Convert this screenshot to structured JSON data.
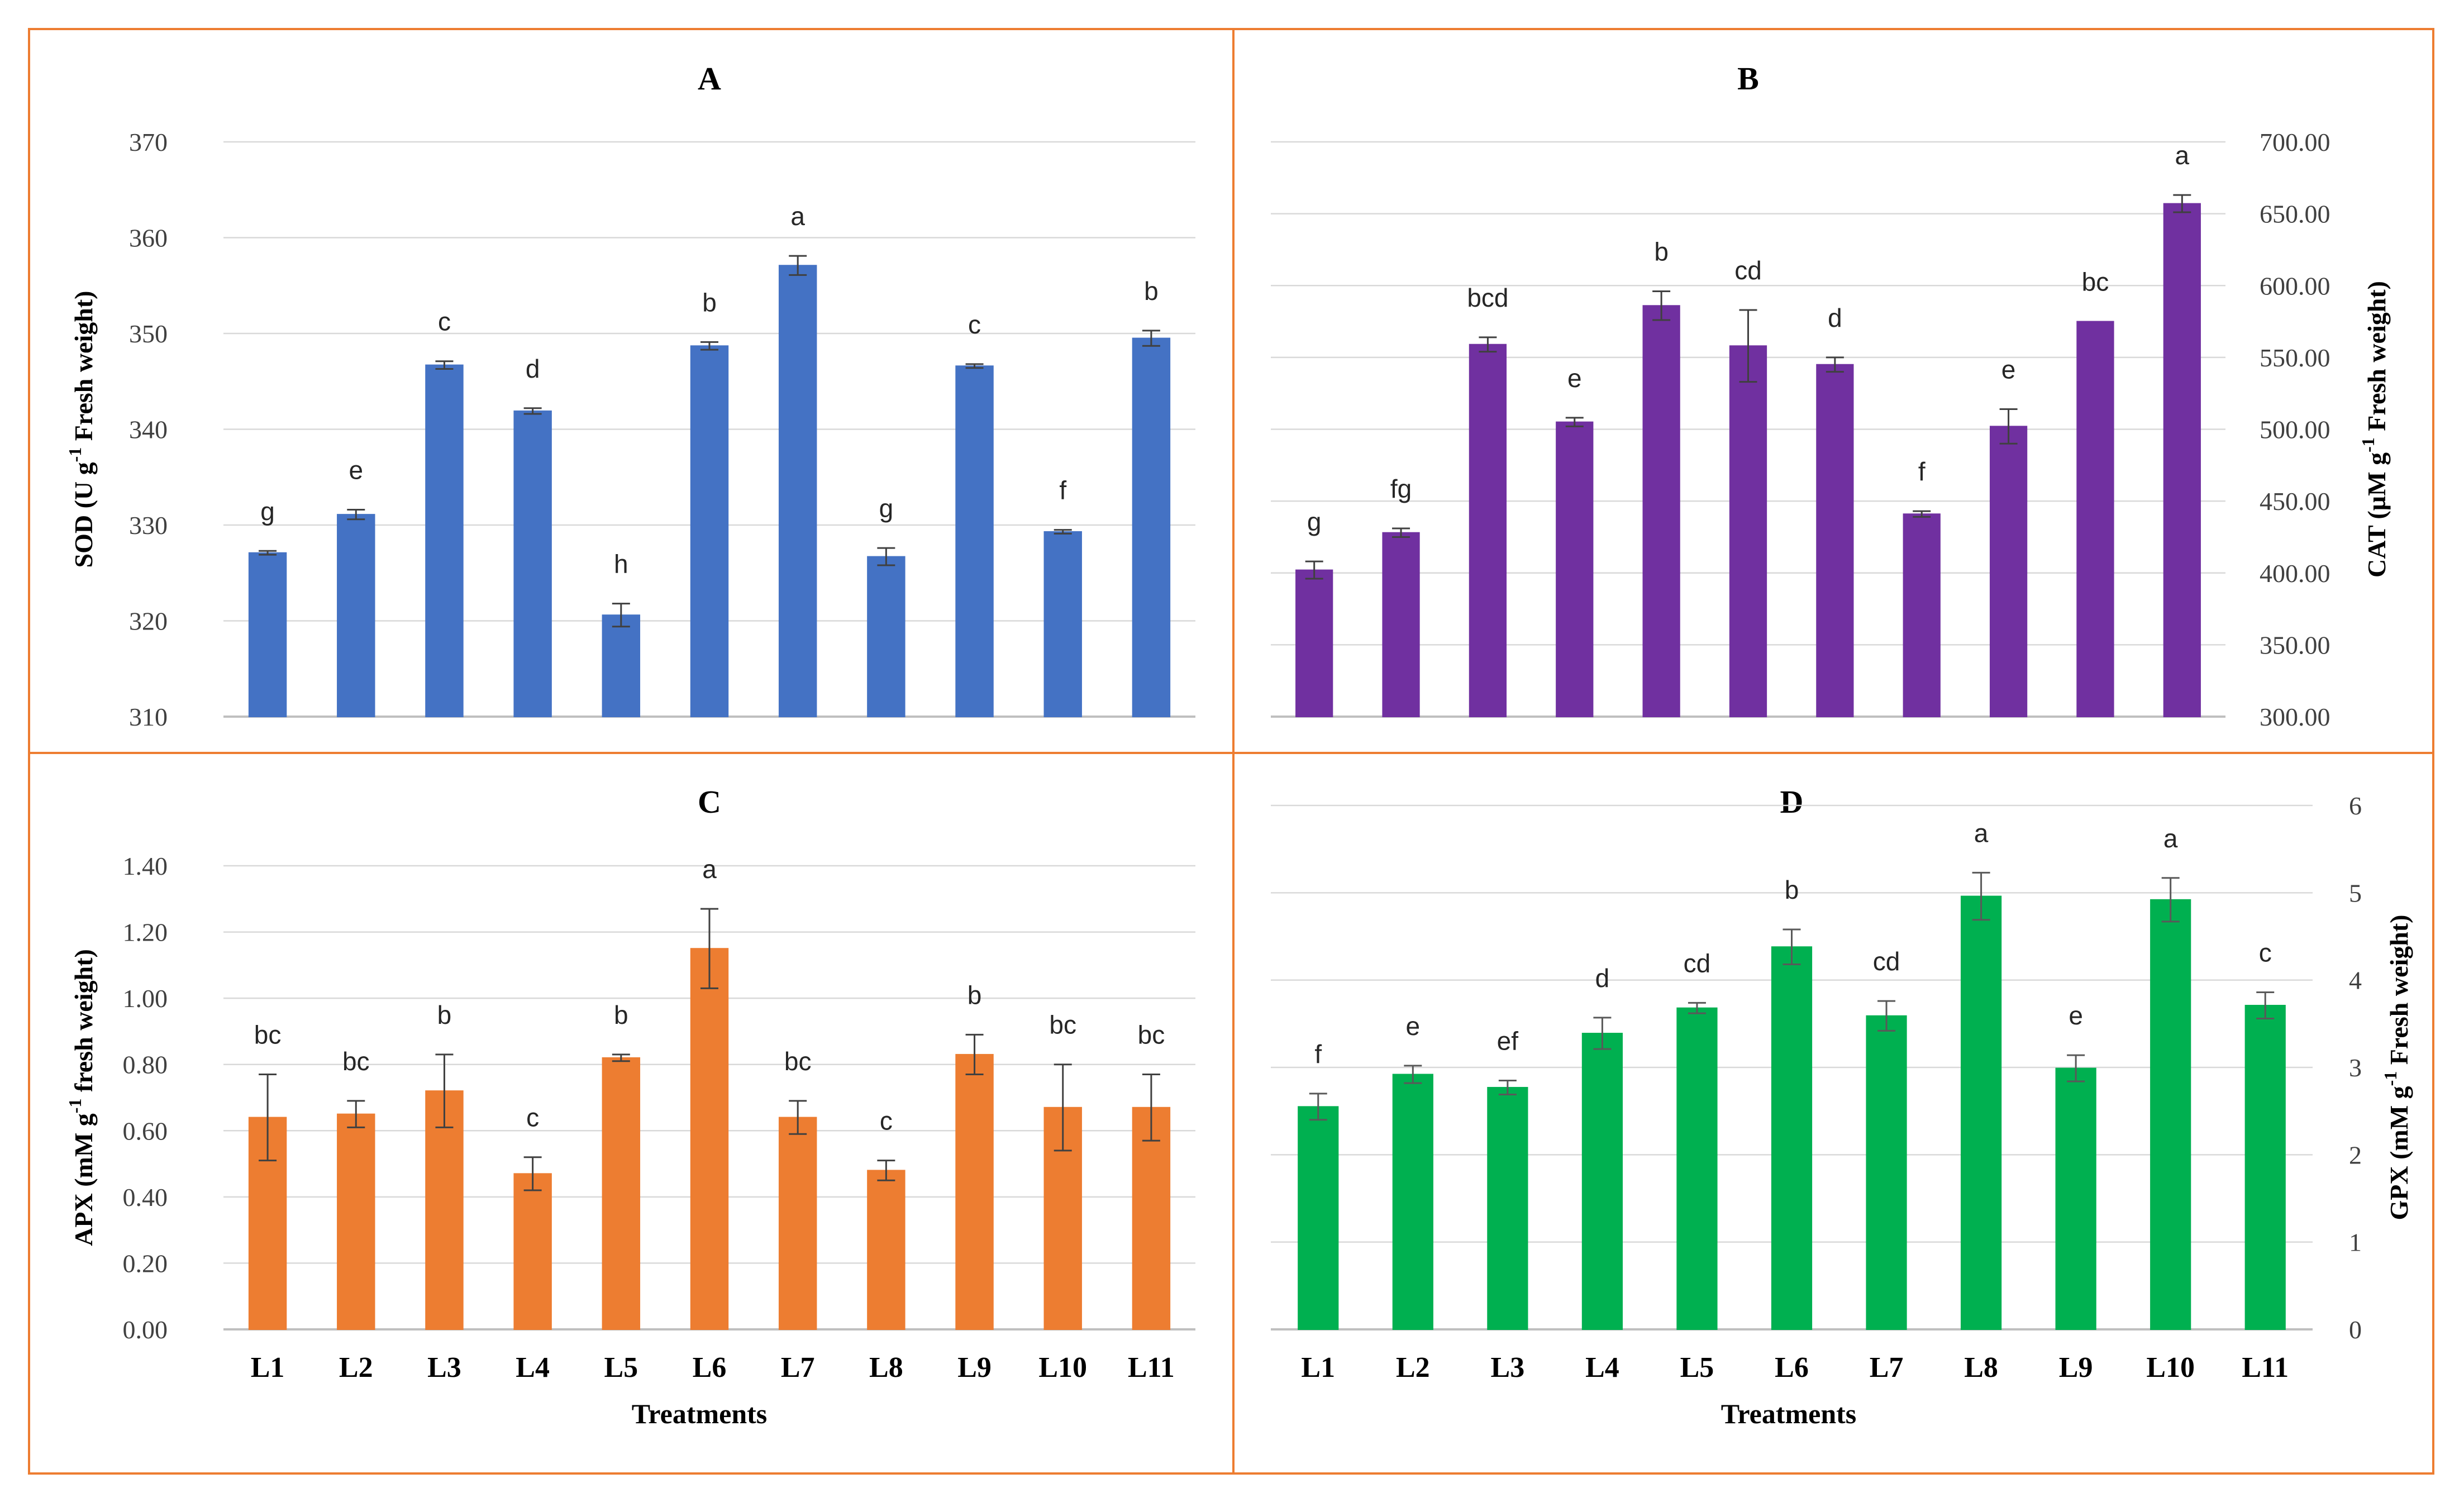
{
  "colors": {
    "panel_border": "#ED7D31",
    "grid": "#d9d9d9",
    "axis": "#bfbfbf",
    "text": "#404040",
    "error_bar": "#404040",
    "error_bar_gpx": "#595959"
  },
  "chart_data": [
    {
      "id": "A",
      "type": "bar",
      "title": "A",
      "ylabel_pre": "SOD (U g",
      "ylabel_sup": "-1",
      "ylabel_post": " Fresh weight)",
      "axis_side": "left",
      "bar_color": "#4472C4",
      "ylim": [
        310,
        370
      ],
      "ticks": [
        310,
        320,
        330,
        340,
        350,
        360,
        370
      ],
      "tick_labels": [
        "310",
        "320",
        "330",
        "340",
        "350",
        "360",
        "370"
      ],
      "categories": [
        "L1",
        "L2",
        "L3",
        "L4",
        "L5",
        "L6",
        "L7",
        "L8",
        "L9",
        "L10",
        "L11"
      ],
      "values": [
        327.1,
        331.1,
        346.7,
        341.9,
        320.6,
        348.7,
        357.1,
        326.7,
        346.6,
        329.3,
        349.5
      ],
      "errors": [
        0.2,
        0.5,
        0.4,
        0.3,
        1.2,
        0.4,
        1.0,
        0.9,
        0.2,
        0.2,
        0.8
      ],
      "letters": [
        "g",
        "e",
        "c",
        "d",
        "h",
        "b",
        "a",
        "g",
        "c",
        "f",
        "b"
      ],
      "show_x_labels": false
    },
    {
      "id": "B",
      "type": "bar",
      "title": "B",
      "ylabel_pre": "CAT (µM  g",
      "ylabel_sup": "-1",
      "ylabel_post": " Fresh weight)",
      "axis_side": "right",
      "bar_color": "#7030A0",
      "ylim": [
        300,
        700
      ],
      "ticks": [
        300,
        350,
        400,
        450,
        500,
        550,
        600,
        650,
        700
      ],
      "tick_labels": [
        "300.00",
        "350.00",
        "400.00",
        "450.00",
        "500.00",
        "550.00",
        "600.00",
        "650.00",
        "700.00"
      ],
      "categories": [
        "L1",
        "L2",
        "L3",
        "L4",
        "L5",
        "L6",
        "L7",
        "L8",
        "L9",
        "L10",
        "L11"
      ],
      "values": [
        402,
        428,
        559,
        505,
        586,
        558,
        545,
        441,
        502,
        575,
        657
      ],
      "errors": [
        6,
        3,
        5,
        3,
        10,
        25,
        5,
        2,
        12,
        0,
        6
      ],
      "letters": [
        "g",
        "fg",
        "bcd",
        "e",
        "b",
        "cd",
        "d",
        "f",
        "e",
        "bc",
        "a"
      ],
      "show_x_labels": false
    },
    {
      "id": "C",
      "type": "bar",
      "title": "C",
      "ylabel_pre": "APX (mM g",
      "ylabel_sup": "-1",
      "ylabel_post": " fresh weight)",
      "xlabel": "Treatments",
      "axis_side": "left",
      "bar_color": "#ED7D31",
      "ylim": [
        0,
        1.4
      ],
      "ticks": [
        0,
        0.2,
        0.4,
        0.6,
        0.8,
        1.0,
        1.2,
        1.4
      ],
      "tick_labels": [
        "0.00",
        "0.20",
        "0.40",
        "0.60",
        "0.80",
        "1.00",
        "1.20",
        "1.40"
      ],
      "categories": [
        "L1",
        "L2",
        "L3",
        "L4",
        "L5",
        "L6",
        "L7",
        "L8",
        "L9",
        "L10",
        "L11"
      ],
      "values": [
        0.64,
        0.65,
        0.72,
        0.47,
        0.82,
        1.15,
        0.64,
        0.48,
        0.83,
        0.67,
        0.67
      ],
      "errors": [
        0.13,
        0.04,
        0.11,
        0.05,
        0.01,
        0.12,
        0.05,
        0.03,
        0.06,
        0.13,
        0.1
      ],
      "letters": [
        "bc",
        "bc",
        "b",
        "c",
        "b",
        "a",
        "bc",
        "c",
        "b",
        "bc",
        "bc"
      ],
      "show_x_labels": true
    },
    {
      "id": "D",
      "type": "bar",
      "title": "D",
      "ylabel_pre": "GPX (mM  g",
      "ylabel_sup": "-1",
      "ylabel_post": " Fresh weight)",
      "xlabel": "Treatments",
      "axis_side": "right",
      "bar_color": "#00B050",
      "ylim": [
        0,
        6
      ],
      "ticks": [
        0,
        1,
        2,
        3,
        4,
        5,
        6
      ],
      "tick_labels": [
        "0",
        "1",
        "2",
        "3",
        "4",
        "5",
        "6"
      ],
      "categories": [
        "L1",
        "L2",
        "L3",
        "L4",
        "L5",
        "L6",
        "L7",
        "L8",
        "L9",
        "L10",
        "L11"
      ],
      "values": [
        2.55,
        2.92,
        2.77,
        3.39,
        3.68,
        4.38,
        3.59,
        4.96,
        2.99,
        4.92,
        3.71
      ],
      "errors": [
        0.15,
        0.1,
        0.08,
        0.18,
        0.06,
        0.2,
        0.17,
        0.27,
        0.15,
        0.25,
        0.15
      ],
      "letters": [
        "f",
        "e",
        "ef",
        "d",
        "cd",
        "b",
        "cd",
        "a",
        "e",
        "a",
        "c"
      ],
      "show_x_labels": true
    }
  ]
}
